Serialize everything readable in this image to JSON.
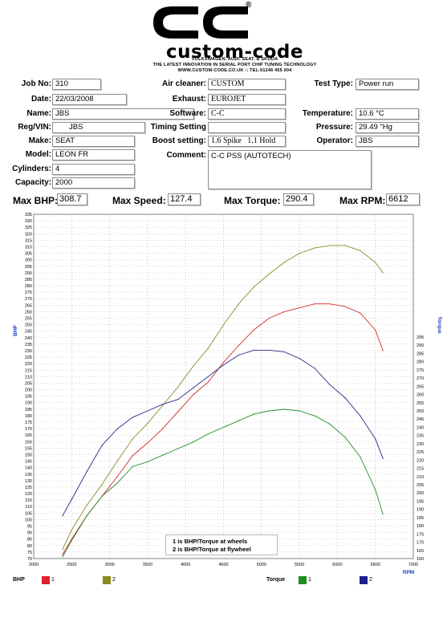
{
  "header": {
    "brand": "custom-code",
    "trademark": "®",
    "tagline1": "VOLKSWAGEN. AUDI. SEAT. & SKODA",
    "tagline2": "THE LATEST INNOVATION IN SERIAL PORT CHIP TUNING TECHNOLOGY",
    "tagline3": "WWW.CUSTOM-CODE.CO.UK :: TEL:01246 455 004"
  },
  "fields": {
    "job_no": {
      "label": "Job No:",
      "value": "310"
    },
    "date": {
      "label": "Date:",
      "value": "22/03/2008"
    },
    "name": {
      "label": "Name:",
      "value": "JBS"
    },
    "reg_vin": {
      "label": "Reg/VIN:",
      "value": "JBS"
    },
    "make": {
      "label": "Make:",
      "value": "SEAT"
    },
    "model": {
      "label": "Model:",
      "value": "LEON FR"
    },
    "cylinders": {
      "label": "Cylinders:",
      "value": "4"
    },
    "capacity": {
      "label": "Capacity:",
      "value": "2000"
    },
    "air_cleaner": {
      "label": "Air cleaner:",
      "value": "CUSTOM"
    },
    "exhaust": {
      "label": "Exhaust:",
      "value": "EUROJET"
    },
    "software": {
      "label": "Software:",
      "value": "C-C"
    },
    "timing_setting": {
      "label": "Timing Setting",
      "value": ""
    },
    "boost_setting": {
      "label": "Boost setting:",
      "value": "1.6 Spike   1.1 Hold"
    },
    "comment": {
      "label": "Comment:",
      "value": "C-C PSS (AUTOTECH)"
    },
    "test_type": {
      "label": "Test Type:",
      "value": "Power run"
    },
    "temperature": {
      "label": "Temperature:",
      "value": "10.6 °C"
    },
    "pressure": {
      "label": "Pressure:",
      "value": "29.49 \"Hg"
    },
    "operator": {
      "label": "Operator:",
      "value": "JBS"
    }
  },
  "summary": {
    "max_bhp": {
      "label": "Max BHP:",
      "value": "308.7"
    },
    "max_speed": {
      "label": "Max Speed:",
      "value": "127.4"
    },
    "max_torque": {
      "label": "Max Torque:",
      "value": "290.4"
    },
    "max_rpm": {
      "label": "Max RPM:",
      "value": "6612"
    }
  },
  "legend_box": {
    "line1": "1 is BHP/Torque at wheels",
    "line2": "2 is BHP/Torque at flywheel"
  },
  "bottom_legend": {
    "bhp_label": "BHP",
    "torque_label": "Torque",
    "items": [
      {
        "text": "1",
        "color": "#e0202a"
      },
      {
        "text": "2",
        "color": "#8c8c1e"
      },
      {
        "text": "1",
        "color": "#1e8c1e"
      },
      {
        "text": "2",
        "color": "#1e1e8c"
      }
    ]
  },
  "chart_data": {
    "type": "line",
    "xlabel": "RPM",
    "ylabel_left": "BHP",
    "ylabel_right": "Torque",
    "xlim": [
      2000,
      7000
    ],
    "ylim_left": [
      70,
      335
    ],
    "ylim_right": [
      160,
      295
    ],
    "x_ticks": [
      2000,
      2500,
      3000,
      3500,
      4000,
      4500,
      5000,
      5500,
      6000,
      6500,
      7000
    ],
    "y_left_ticks": [
      70,
      75,
      80,
      85,
      90,
      95,
      100,
      105,
      110,
      115,
      120,
      125,
      130,
      135,
      140,
      145,
      150,
      155,
      160,
      165,
      170,
      175,
      180,
      185,
      190,
      195,
      200,
      205,
      210,
      215,
      220,
      225,
      230,
      235,
      240,
      245,
      250,
      255,
      260,
      265,
      270,
      275,
      280,
      285,
      290,
      295,
      300,
      305,
      310,
      315,
      320,
      325,
      330,
      335
    ],
    "y_right_ticks": [
      160,
      165,
      170,
      175,
      180,
      185,
      190,
      195,
      200,
      205,
      210,
      215,
      220,
      225,
      230,
      235,
      240,
      245,
      250,
      255,
      260,
      265,
      270,
      275,
      280,
      285,
      290,
      295
    ],
    "grid": true,
    "series": [
      {
        "name": "BHP 1",
        "axis": "left",
        "color": "#d42a2a",
        "x": [
          2380,
          2500,
          2700,
          2900,
          3100,
          3300,
          3500,
          3700,
          3900,
          4100,
          4300,
          4500,
          4700,
          4900,
          5100,
          5300,
          5500,
          5700,
          5900,
          6100,
          6300,
          6500,
          6600
        ],
        "y": [
          73,
          85,
          103,
          118,
          133,
          149,
          159,
          170,
          183,
          196,
          206,
          221,
          234,
          246,
          255,
          260,
          263,
          266,
          266,
          264,
          259,
          246,
          230
        ]
      },
      {
        "name": "BHP 2",
        "axis": "left",
        "color": "#8c8c2a",
        "x": [
          2380,
          2500,
          2700,
          2900,
          3100,
          3300,
          3500,
          3700,
          3900,
          4100,
          4300,
          4500,
          4700,
          4900,
          5100,
          5300,
          5500,
          5700,
          5900,
          6100,
          6300,
          6500,
          6600
        ],
        "y": [
          77,
          92,
          111,
          127,
          145,
          162,
          174,
          188,
          202,
          218,
          232,
          250,
          266,
          279,
          289,
          298,
          305,
          309,
          311,
          311,
          307,
          298,
          290
        ]
      },
      {
        "name": "Torque 1",
        "axis": "right",
        "color": "#2a8c2a",
        "x": [
          2380,
          2500,
          2700,
          2900,
          3100,
          3300,
          3500,
          3700,
          3900,
          4100,
          4300,
          4500,
          4700,
          4900,
          5100,
          5300,
          5500,
          5700,
          5900,
          6100,
          6300,
          6500,
          6600
        ],
        "y": [
          161,
          171,
          186,
          198,
          206,
          216,
          219,
          223,
          227,
          231,
          236,
          240,
          244,
          248,
          250,
          251,
          250,
          247,
          242,
          234,
          222,
          202,
          187
        ]
      },
      {
        "name": "Torque 2",
        "axis": "right",
        "color": "#2a2a8c",
        "x": [
          2380,
          2500,
          2700,
          2900,
          3100,
          3300,
          3500,
          3700,
          3900,
          4100,
          4300,
          4500,
          4700,
          4900,
          5100,
          5300,
          5500,
          5700,
          5900,
          6100,
          6300,
          6500,
          6600
        ],
        "y": [
          186,
          196,
          213,
          229,
          239,
          246,
          250,
          254,
          257,
          264,
          271,
          278,
          284,
          287,
          287,
          286,
          282,
          276,
          266,
          258,
          247,
          233,
          221
        ]
      }
    ]
  }
}
